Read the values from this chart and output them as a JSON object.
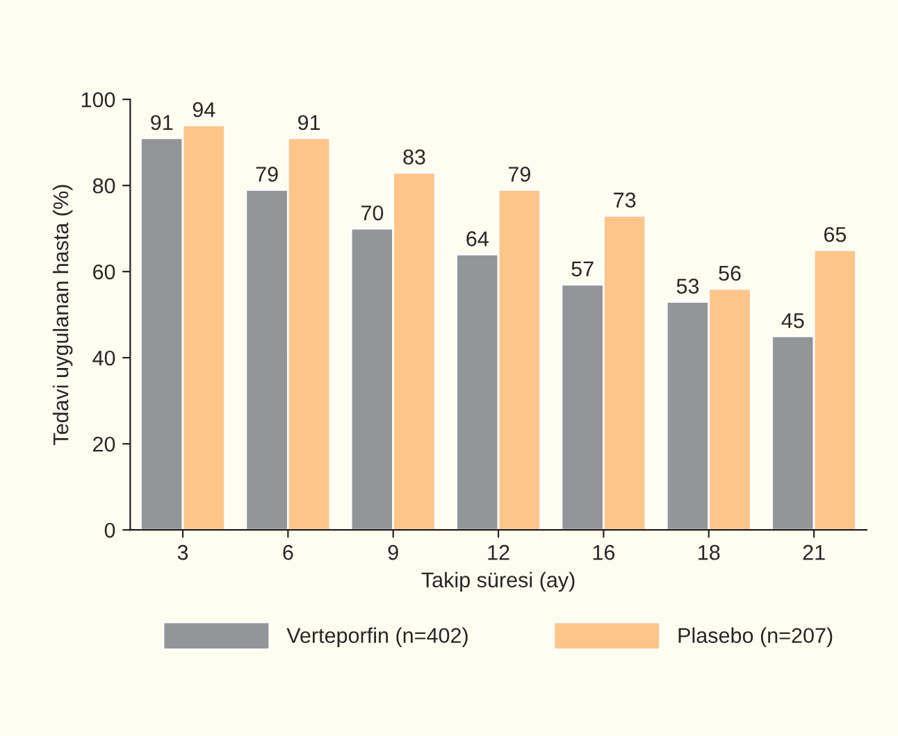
{
  "chart_data": {
    "type": "bar",
    "xlabel": "Takip süresi (ay)",
    "ylabel": "Tedavi uygulanan hasta (%)",
    "categories": [
      "3",
      "6",
      "9",
      "12",
      "16",
      "18",
      "21"
    ],
    "series": [
      {
        "name": "Verteporfin (n=402)",
        "color": "#939598",
        "values": [
          91,
          79,
          70,
          64,
          57,
          53,
          45
        ]
      },
      {
        "name": "Plasebo (n=207)",
        "color": "#fdc58a",
        "values": [
          94,
          91,
          83,
          79,
          73,
          56,
          65
        ]
      }
    ],
    "ylim": [
      0,
      100
    ],
    "yticks": [
      0,
      20,
      40,
      60,
      80,
      100
    ],
    "grid": false,
    "legend": "bottom",
    "data_labels": true
  }
}
